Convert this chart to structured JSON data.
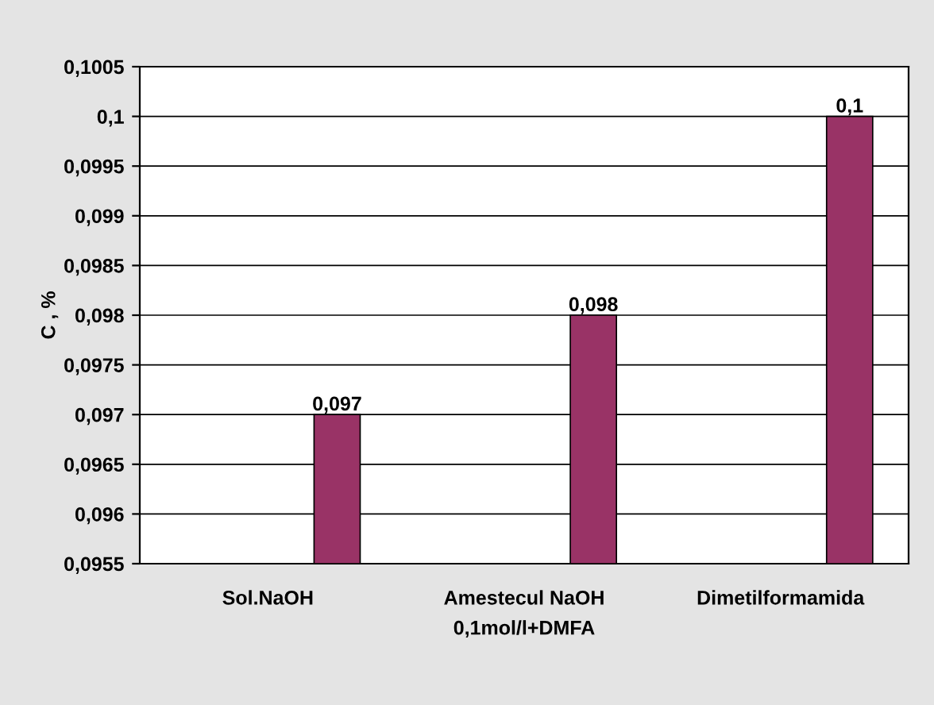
{
  "chart_data": {
    "type": "bar",
    "ylabel": "C , %",
    "categories": [
      "Sol.NaOH",
      "Amestecul NaOH\n0,1mol/l+DMFA",
      "Dimetilformamida"
    ],
    "values": [
      0.097,
      0.098,
      0.1
    ],
    "color": "#993366",
    "value_labels": [
      "0,097",
      "0,098",
      "0,1"
    ],
    "ylim": [
      0.0955,
      0.1005
    ],
    "yticks": [
      {
        "value": 0.0955,
        "label": "0,0955"
      },
      {
        "value": 0.096,
        "label": "0,096"
      },
      {
        "value": 0.0965,
        "label": "0,0965"
      },
      {
        "value": 0.097,
        "label": "0,097"
      },
      {
        "value": 0.0975,
        "label": "0,0975"
      },
      {
        "value": 0.098,
        "label": "0,098"
      },
      {
        "value": 0.0985,
        "label": "0,0985"
      },
      {
        "value": 0.099,
        "label": "0,099"
      },
      {
        "value": 0.0995,
        "label": "0,0995"
      },
      {
        "value": 0.1,
        "label": "0,1"
      },
      {
        "value": 0.1005,
        "label": "0,1005"
      }
    ],
    "grid": "y"
  }
}
